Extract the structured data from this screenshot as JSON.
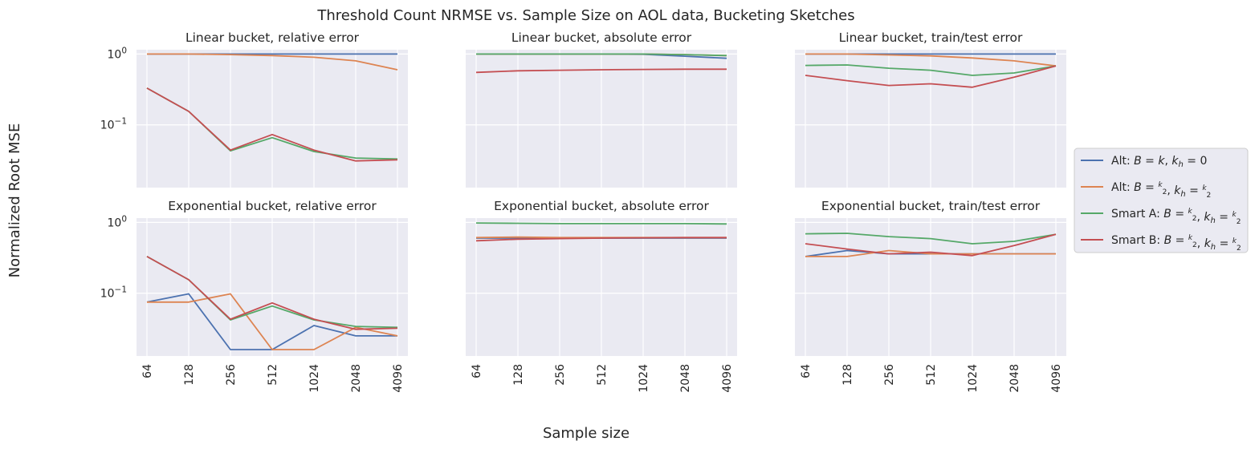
{
  "figure": {
    "title": "Threshold Count NRMSE vs. Sample Size on AOL data, Bucketing Sketches",
    "xlabel": "Sample size",
    "ylabel": "Normalized Root MSE"
  },
  "legend": {
    "placement": "center-right",
    "entries": [
      {
        "series": "Alt: B=k, k_h=0",
        "color": "#4c72b0"
      },
      {
        "series": "Alt: B=k/2, k_h=k/2",
        "color": "#dd8452"
      },
      {
        "series": "Smart A: B=k/2, k_h=k/2",
        "color": "#55a868"
      },
      {
        "series": "Smart B: B=k/2, k_h=k/2",
        "color": "#c44e52"
      }
    ]
  },
  "colors": {
    "panel_bg": "#eaeaf2",
    "grid": "#ffffff"
  },
  "chart_data": [
    {
      "type": "line",
      "title": "Linear bucket, relative error",
      "x": [
        "64",
        "128",
        "256",
        "512",
        "1024",
        "2048",
        "4096"
      ],
      "yscale": "log",
      "ytick_labels": [
        "10^0",
        "10^-1"
      ],
      "ylim": [
        0.013,
        1.15
      ],
      "series": [
        {
          "name": "Alt: B=k, k_h=0",
          "values": [
            1.0,
            1.0,
            1.0,
            1.0,
            1.0,
            1.0,
            1.0
          ]
        },
        {
          "name": "Alt: B=k/2, k_h=k/2",
          "values": [
            1.0,
            1.0,
            0.98,
            0.95,
            0.9,
            0.8,
            0.6
          ]
        },
        {
          "name": "Smart A: B=k/2, k_h=k/2",
          "values": [
            0.33,
            0.155,
            0.043,
            0.066,
            0.042,
            0.034,
            0.033
          ]
        },
        {
          "name": "Smart B: B=k/2, k_h=k/2",
          "values": [
            0.33,
            0.155,
            0.044,
            0.073,
            0.044,
            0.031,
            0.032
          ]
        }
      ]
    },
    {
      "type": "line",
      "title": "Linear bucket, absolute error",
      "x": [
        "64",
        "128",
        "256",
        "512",
        "1024",
        "2048",
        "4096"
      ],
      "yscale": "log",
      "ylim": [
        0.013,
        1.15
      ],
      "series": [
        {
          "name": "Alt: B=k, k_h=0",
          "values": [
            1.0,
            1.0,
            1.0,
            1.0,
            0.99,
            0.93,
            0.87
          ]
        },
        {
          "name": "Alt: B=k/2, k_h=k/2",
          "values": [
            1.0,
            1.0,
            1.0,
            1.0,
            1.0,
            0.98,
            0.95
          ]
        },
        {
          "name": "Smart A: B=k/2, k_h=k/2",
          "values": [
            1.0,
            1.0,
            1.0,
            1.0,
            1.0,
            0.98,
            0.95
          ]
        },
        {
          "name": "Smart B: B=k/2, k_h=k/2",
          "values": [
            0.55,
            0.58,
            0.59,
            0.6,
            0.605,
            0.61,
            0.61
          ]
        }
      ]
    },
    {
      "type": "line",
      "title": "Linear bucket, train/test error",
      "x": [
        "64",
        "128",
        "256",
        "512",
        "1024",
        "2048",
        "4096"
      ],
      "yscale": "log",
      "ylim": [
        0.013,
        1.15
      ],
      "series": [
        {
          "name": "Alt: B=k, k_h=0",
          "values": [
            1.0,
            1.0,
            1.0,
            1.0,
            1.0,
            1.0,
            1.0
          ]
        },
        {
          "name": "Alt: B=k/2, k_h=k/2",
          "values": [
            1.0,
            1.0,
            0.97,
            0.94,
            0.88,
            0.8,
            0.68
          ]
        },
        {
          "name": "Smart A: B=k/2, k_h=k/2",
          "values": [
            0.69,
            0.7,
            0.63,
            0.59,
            0.5,
            0.54,
            0.68
          ]
        },
        {
          "name": "Smart B: B=k/2, k_h=k/2",
          "values": [
            0.5,
            0.42,
            0.36,
            0.38,
            0.34,
            0.47,
            0.68
          ]
        }
      ]
    },
    {
      "type": "line",
      "title": "Exponential bucket, relative error",
      "x": [
        "64",
        "128",
        "256",
        "512",
        "1024",
        "2048",
        "4096"
      ],
      "yscale": "log",
      "ytick_labels": [
        "10^0",
        "10^-1"
      ],
      "ylim": [
        0.013,
        1.15
      ],
      "series": [
        {
          "name": "Alt: B=k, k_h=0",
          "values": [
            0.075,
            0.098,
            0.016,
            0.016,
            0.035,
            0.025,
            0.025
          ]
        },
        {
          "name": "Alt: B=k/2, k_h=k/2",
          "values": [
            0.075,
            0.075,
            0.098,
            0.016,
            0.016,
            0.033,
            0.025
          ]
        },
        {
          "name": "Smart A: B=k/2, k_h=k/2",
          "values": [
            0.33,
            0.155,
            0.042,
            0.066,
            0.042,
            0.034,
            0.033
          ]
        },
        {
          "name": "Smart B: B=k/2, k_h=k/2",
          "values": [
            0.33,
            0.155,
            0.043,
            0.073,
            0.043,
            0.031,
            0.032
          ]
        }
      ]
    },
    {
      "type": "line",
      "title": "Exponential bucket, absolute error",
      "x": [
        "64",
        "128",
        "256",
        "512",
        "1024",
        "2048",
        "4096"
      ],
      "yscale": "log",
      "ylim": [
        0.013,
        1.15
      ],
      "series": [
        {
          "name": "Alt: B=k, k_h=0",
          "values": [
            0.6,
            0.6,
            0.6,
            0.6,
            0.6,
            0.6,
            0.6
          ]
        },
        {
          "name": "Alt: B=k/2, k_h=k/2",
          "values": [
            0.61,
            0.62,
            0.61,
            0.61,
            0.61,
            0.61,
            0.61
          ]
        },
        {
          "name": "Smart A: B=k/2, k_h=k/2",
          "values": [
            0.98,
            0.97,
            0.96,
            0.96,
            0.96,
            0.96,
            0.95
          ]
        },
        {
          "name": "Smart B: B=k/2, k_h=k/2",
          "values": [
            0.55,
            0.58,
            0.59,
            0.6,
            0.605,
            0.61,
            0.61
          ]
        }
      ]
    },
    {
      "type": "line",
      "title": "Exponential bucket, train/test error",
      "x": [
        "64",
        "128",
        "256",
        "512",
        "1024",
        "2048",
        "4096"
      ],
      "yscale": "log",
      "ylim": [
        0.013,
        1.15
      ],
      "series": [
        {
          "name": "Alt: B=k, k_h=0",
          "values": [
            0.33,
            0.4,
            0.36,
            0.36,
            0.36,
            0.36,
            0.36
          ]
        },
        {
          "name": "Alt: B=k/2, k_h=k/2",
          "values": [
            0.33,
            0.33,
            0.4,
            0.36,
            0.36,
            0.36,
            0.36
          ]
        },
        {
          "name": "Smart A: B=k/2, k_h=k/2",
          "values": [
            0.69,
            0.7,
            0.63,
            0.59,
            0.5,
            0.54,
            0.68
          ]
        },
        {
          "name": "Smart B: B=k/2, k_h=k/2",
          "values": [
            0.5,
            0.42,
            0.36,
            0.38,
            0.34,
            0.47,
            0.68
          ]
        }
      ]
    }
  ]
}
